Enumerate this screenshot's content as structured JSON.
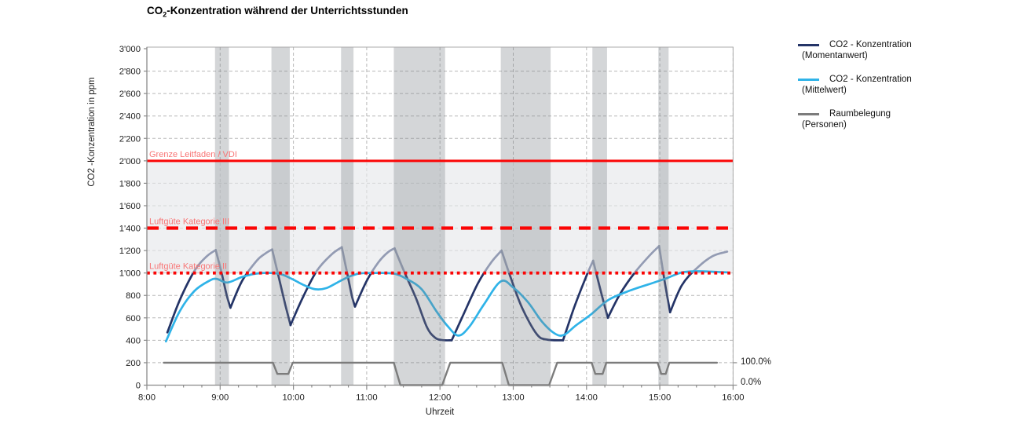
{
  "chart": {
    "title_prefix": "CO",
    "title_sub": "2",
    "title_rest": "-Konzentration während der Unterrichtsstunden",
    "ylabel": "CO2 -Konzentration in ppm",
    "xlabel": "Uhrzeit",
    "right_axis": {
      "top_label": "100.0%",
      "bottom_label": "0.0%"
    }
  },
  "legend": {
    "items": [
      {
        "line1": "CO2 - Konzentration",
        "line2": "(Momentanwert)",
        "color": "#243467"
      },
      {
        "line1": "CO2 - Konzentration",
        "line2": "(Mittelwert)",
        "color": "#2fb3e8"
      },
      {
        "line1": "Raumbelegung",
        "line2": "(Personen)",
        "color": "#7c7c7c"
      }
    ]
  },
  "chart_data": {
    "type": "line",
    "title": "CO2-Konzentration während der Unterrichtsstunden",
    "xlabel": "Uhrzeit",
    "ylabel": "CO2 -Konzentration in ppm",
    "xlim_hours": [
      8,
      16
    ],
    "ylim": [
      0,
      3000
    ],
    "grid": true,
    "legend_position": "right",
    "x_tick_hours": [
      8,
      9,
      10,
      11,
      12,
      13,
      14,
      15,
      16
    ],
    "x_tick_labels": [
      "8:00",
      "9:00",
      "10:00",
      "11:00",
      "12:00",
      "13:00",
      "14:00",
      "15:00",
      "16:00"
    ],
    "x_minor_tick_step_hours": 0.25,
    "y_tick_values": [
      0,
      200,
      400,
      600,
      800,
      1000,
      1200,
      1400,
      1600,
      1800,
      2000,
      2200,
      2400,
      2600,
      2800,
      3000
    ],
    "y_tick_labels": [
      "0",
      "200",
      "400",
      "600",
      "800",
      "1'000",
      "1'200",
      "1'400",
      "1'600",
      "1'800",
      "2'000",
      "2'200",
      "2'400",
      "2'600",
      "2'800",
      "3'000"
    ],
    "right_axis": {
      "labels": [
        "100.0%",
        "0.0%"
      ],
      "values": [
        100,
        0
      ],
      "unit": "percent",
      "maps_to_ppm": 200
    },
    "quality_band_ppm": [
      1000,
      2000
    ],
    "break_bands_hours": [
      [
        8.93,
        9.12
      ],
      [
        9.7,
        9.95
      ],
      [
        10.65,
        10.82
      ],
      [
        11.37,
        12.07
      ],
      [
        12.83,
        13.51
      ],
      [
        14.08,
        14.28
      ],
      [
        14.98,
        15.12
      ]
    ],
    "reference_lines": [
      {
        "label": "Grenze Leitfaden / VDI",
        "value": 2000,
        "style": "solid"
      },
      {
        "label": "Luftgüte Kategorie III",
        "value": 1400,
        "style": "dashed"
      },
      {
        "label": "Luftgüte Kategorie II",
        "value": 1000,
        "style": "dotted"
      }
    ],
    "series": [
      {
        "name": "CO2 - Konzentration (Momentanwert)",
        "color_key": "momentanwert",
        "unit": "ppm",
        "smooth": true,
        "width": 2.7,
        "segments": [
          [
            [
              8.28,
              470
            ],
            [
              8.45,
              760
            ],
            [
              8.66,
              1030
            ],
            [
              8.82,
              1150
            ],
            [
              8.94,
              1205
            ]
          ],
          [
            [
              8.94,
              1205
            ],
            [
              9.02,
              1000
            ],
            [
              9.09,
              800
            ],
            [
              9.14,
              690
            ]
          ],
          [
            [
              9.14,
              690
            ],
            [
              9.3,
              930
            ],
            [
              9.5,
              1110
            ],
            [
              9.62,
              1175
            ],
            [
              9.71,
              1210
            ]
          ],
          [
            [
              9.71,
              1210
            ],
            [
              9.79,
              990
            ],
            [
              9.89,
              715
            ],
            [
              9.96,
              535
            ]
          ],
          [
            [
              9.96,
              535
            ],
            [
              10.12,
              770
            ],
            [
              10.32,
              1020
            ],
            [
              10.52,
              1165
            ],
            [
              10.66,
              1230
            ]
          ],
          [
            [
              10.66,
              1230
            ],
            [
              10.73,
              1010
            ],
            [
              10.8,
              790
            ],
            [
              10.84,
              700
            ]
          ],
          [
            [
              10.84,
              700
            ],
            [
              11.0,
              930
            ],
            [
              11.16,
              1095
            ],
            [
              11.29,
              1185
            ],
            [
              11.38,
              1220
            ]
          ],
          [
            [
              11.38,
              1220
            ],
            [
              11.52,
              1000
            ],
            [
              11.67,
              780
            ],
            [
              11.82,
              520
            ],
            [
              11.93,
              425
            ],
            [
              12.03,
              402
            ],
            [
              12.16,
              400
            ]
          ],
          [
            [
              12.16,
              400
            ],
            [
              12.32,
              630
            ],
            [
              12.52,
              910
            ],
            [
              12.7,
              1095
            ],
            [
              12.84,
              1200
            ]
          ],
          [
            [
              12.84,
              1200
            ],
            [
              12.97,
              950
            ],
            [
              13.12,
              690
            ],
            [
              13.32,
              455
            ],
            [
              13.46,
              406
            ],
            [
              13.68,
              400
            ]
          ],
          [
            [
              13.68,
              400
            ],
            [
              13.83,
              690
            ],
            [
              13.99,
              960
            ],
            [
              14.09,
              1110
            ]
          ],
          [
            [
              14.09,
              1110
            ],
            [
              14.19,
              850
            ],
            [
              14.29,
              600
            ]
          ],
          [
            [
              14.29,
              600
            ],
            [
              14.46,
              815
            ],
            [
              14.66,
              1005
            ],
            [
              14.86,
              1155
            ],
            [
              14.99,
              1240
            ]
          ],
          [
            [
              14.99,
              1240
            ],
            [
              15.06,
              950
            ],
            [
              15.14,
              650
            ]
          ],
          [
            [
              15.14,
              650
            ],
            [
              15.3,
              890
            ],
            [
              15.5,
              1040
            ],
            [
              15.72,
              1150
            ],
            [
              15.92,
              1190
            ]
          ]
        ]
      },
      {
        "name": "CO2 - Konzentration (Mittelwert)",
        "color_key": "mittelwert",
        "unit": "ppm",
        "smooth": true,
        "width": 2.7,
        "segments": [
          [
            [
              8.26,
              390
            ],
            [
              8.45,
              660
            ],
            [
              8.65,
              840
            ],
            [
              8.85,
              930
            ],
            [
              8.95,
              948
            ],
            [
              9.1,
              915
            ],
            [
              9.3,
              965
            ],
            [
              9.5,
              995
            ],
            [
              9.7,
              1000
            ],
            [
              9.85,
              985
            ],
            [
              10.0,
              940
            ],
            [
              10.15,
              890
            ],
            [
              10.3,
              855
            ],
            [
              10.45,
              865
            ],
            [
              10.6,
              915
            ],
            [
              10.75,
              965
            ],
            [
              10.9,
              995
            ],
            [
              11.1,
              1000
            ],
            [
              11.37,
              995
            ],
            [
              11.55,
              945
            ],
            [
              11.75,
              855
            ],
            [
              11.95,
              660
            ],
            [
              12.1,
              530
            ],
            [
              12.25,
              442
            ],
            [
              12.4,
              520
            ],
            [
              12.6,
              720
            ],
            [
              12.83,
              925
            ],
            [
              13.0,
              870
            ],
            [
              13.2,
              740
            ],
            [
              13.4,
              560
            ],
            [
              13.58,
              455
            ],
            [
              13.7,
              450
            ],
            [
              13.85,
              530
            ],
            [
              14.05,
              625
            ],
            [
              14.3,
              760
            ],
            [
              14.6,
              845
            ],
            [
              14.9,
              910
            ],
            [
              15.1,
              955
            ],
            [
              15.3,
              1005
            ],
            [
              15.5,
              1015
            ],
            [
              15.7,
              1012
            ],
            [
              15.92,
              1006
            ]
          ]
        ]
      },
      {
        "name": "Raumbelegung (Personen)",
        "color_key": "raumbelegung",
        "unit": "percent",
        "smooth": false,
        "width": 2.4,
        "segments": [
          [
            [
              8.23,
              100
            ],
            [
              9.72,
              100
            ],
            [
              9.78,
              50
            ],
            [
              9.93,
              50
            ],
            [
              9.99,
              100
            ],
            [
              11.37,
              100
            ],
            [
              11.46,
              0
            ],
            [
              12.03,
              0
            ],
            [
              12.14,
              100
            ],
            [
              12.85,
              100
            ],
            [
              12.94,
              0
            ],
            [
              13.49,
              0
            ],
            [
              13.6,
              100
            ],
            [
              14.07,
              100
            ],
            [
              14.12,
              50
            ],
            [
              14.22,
              50
            ],
            [
              14.27,
              100
            ],
            [
              14.97,
              100
            ],
            [
              15.02,
              50
            ],
            [
              15.08,
              50
            ],
            [
              15.13,
              100
            ],
            [
              15.78,
              100
            ]
          ]
        ]
      }
    ],
    "colors": {
      "momentanwert": "#243467",
      "mittelwert": "#2fb3e8",
      "raumbelegung": "#7c7c7c",
      "reference": "#fb0505",
      "reference_label": "#f87575",
      "quality_band": "#eff0f2",
      "quality_band_overlay": "rgba(239,240,242,0.55)",
      "break_band": "rgba(125,130,136,0.33)",
      "gridline": "#b8b8b8",
      "axis": "#8a8a8a",
      "border": "#ababab",
      "text": "#1c1c1c"
    }
  }
}
